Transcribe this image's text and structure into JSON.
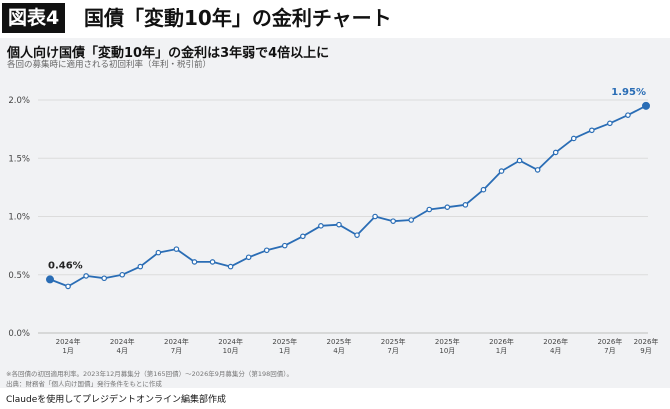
{
  "header": {
    "badge": "図表4",
    "title": "国債「変動10年」の金利チャート"
  },
  "chart_data": {
    "type": "line",
    "title": "個人向け国債「変動10年」の金利は3年弱で4倍以上に",
    "subtitle": "各回の募集時に適用される初回利率（年利・税引前）",
    "ylim": [
      0,
      2.0
    ],
    "yticks": [
      {
        "value": 0.0,
        "label": "0.0%"
      },
      {
        "value": 0.5,
        "label": "0.5%"
      },
      {
        "value": 1.0,
        "label": "1.0%"
      },
      {
        "value": 1.5,
        "label": "1.5%"
      },
      {
        "value": 2.0,
        "label": "2.0%"
      }
    ],
    "grid": true,
    "color": "#2a6db5",
    "x": [
      "2023-12",
      "2024-01",
      "2024-02",
      "2024-03",
      "2024-04",
      "2024-05",
      "2024-06",
      "2024-07",
      "2024-08",
      "2024-09",
      "2024-10",
      "2024-11",
      "2024-12",
      "2025-01",
      "2025-02",
      "2025-03",
      "2025-04",
      "2025-05",
      "2025-06",
      "2025-07",
      "2025-08",
      "2025-09",
      "2025-10",
      "2025-11",
      "2025-12",
      "2026-01",
      "2026-02",
      "2026-03",
      "2026-04",
      "2026-05",
      "2026-06",
      "2026-07",
      "2026-08",
      "2026-09"
    ],
    "values": [
      0.46,
      0.4,
      0.49,
      0.47,
      0.5,
      0.57,
      0.69,
      0.72,
      0.61,
      0.61,
      0.57,
      0.65,
      0.71,
      0.75,
      0.83,
      0.92,
      0.93,
      0.84,
      1.0,
      0.96,
      0.97,
      1.06,
      1.08,
      1.1,
      1.23,
      1.39,
      1.48,
      1.4,
      1.55,
      1.67,
      1.74,
      1.8,
      1.87,
      1.95
    ],
    "xticks": [
      {
        "x": "2024-01",
        "line1": "2024年",
        "line2": "1月"
      },
      {
        "x": "2024-04",
        "line1": "2024年",
        "line2": "4月"
      },
      {
        "x": "2024-07",
        "line1": "2024年",
        "line2": "7月"
      },
      {
        "x": "2024-10",
        "line1": "2024年",
        "line2": "10月"
      },
      {
        "x": "2025-01",
        "line1": "2025年",
        "line2": "1月"
      },
      {
        "x": "2025-04",
        "line1": "2025年",
        "line2": "4月"
      },
      {
        "x": "2025-07",
        "line1": "2025年",
        "line2": "7月"
      },
      {
        "x": "2025-10",
        "line1": "2025年",
        "line2": "10月"
      },
      {
        "x": "2026-01",
        "line1": "2026年",
        "line2": "1月"
      },
      {
        "x": "2026-04",
        "line1": "2026年",
        "line2": "4月"
      },
      {
        "x": "2026-07",
        "line1": "2026年",
        "line2": "7月"
      },
      {
        "x": "2026-09",
        "line1": "2026年",
        "line2": "9月"
      }
    ],
    "data_labels": [
      {
        "x": "2023-12",
        "text": "0.46%",
        "color": "#222222"
      },
      {
        "x": "2026-09",
        "text": "1.95%",
        "color": "#2a6db5"
      }
    ]
  },
  "notes": {
    "note1": "※各回債の初回適用利率。2023年12月募集分（第165回債）〜2026年9月募集分（第198回債）。",
    "note2": "出典：財務省「個人向け国債」発行条件をもとに作成"
  },
  "credit": "Claudeを使用してプレジデントオンライン編集部作成"
}
